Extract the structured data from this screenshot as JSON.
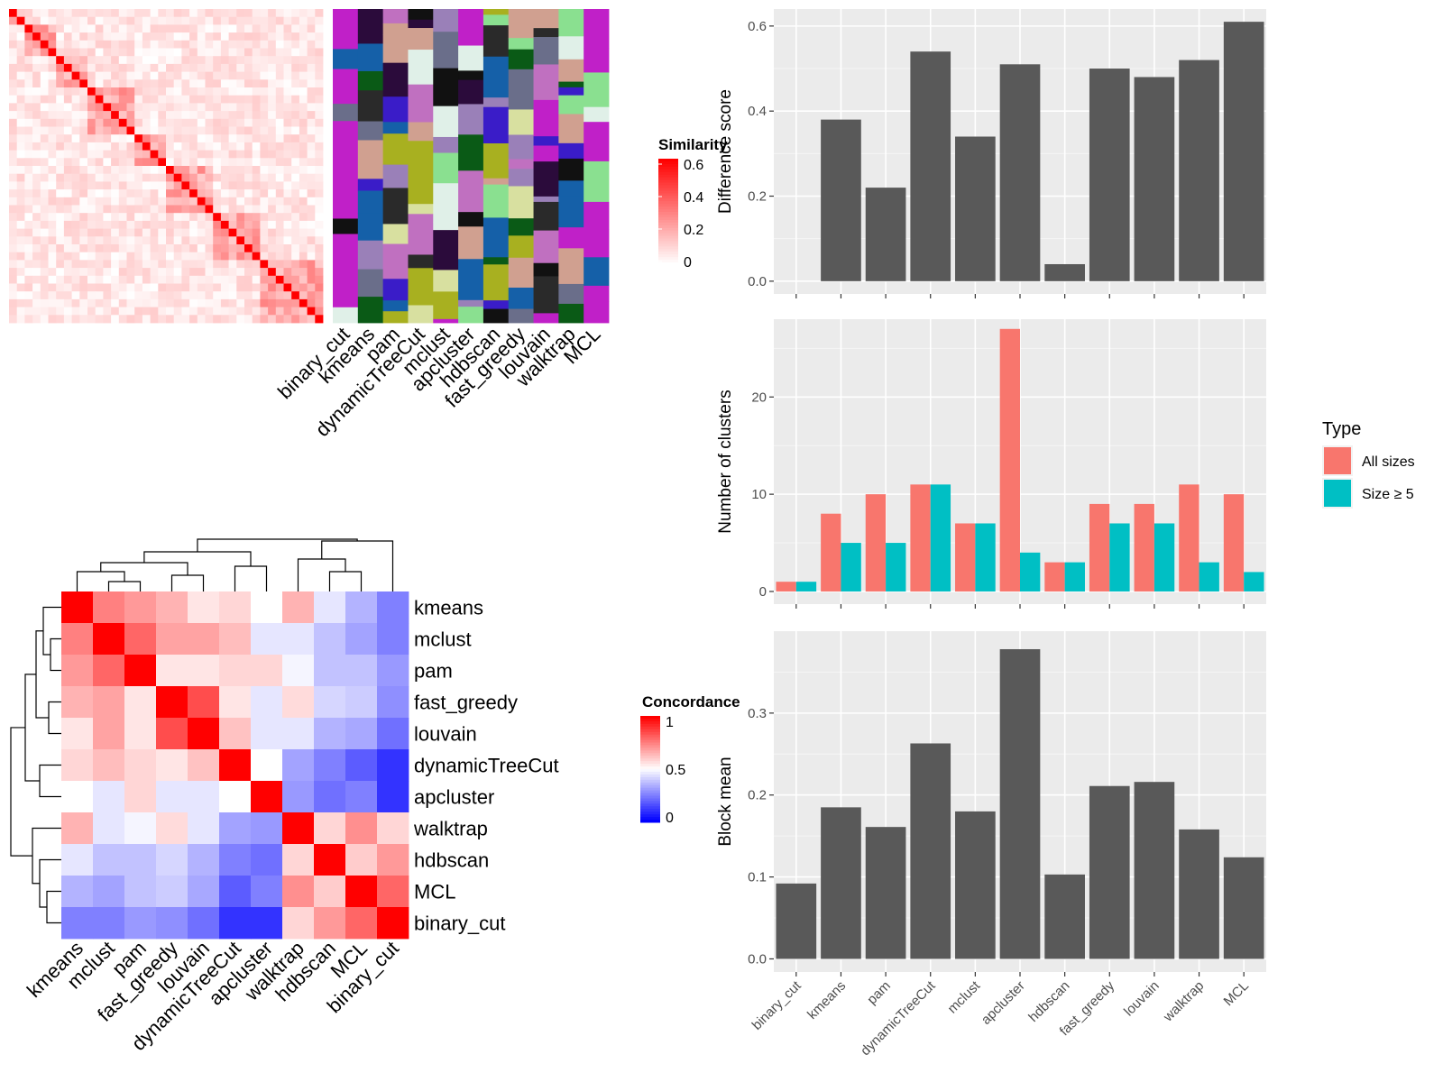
{
  "chart_data": [
    {
      "type": "heatmap",
      "panel": "similarity-heatmap",
      "legend_title": "Similarity",
      "legend_ticks": [
        "0.6",
        "0.4",
        "0.2",
        "0"
      ],
      "legend_range": [
        0,
        0.6
      ],
      "column_labels": [
        "binary_cut",
        "kmeans",
        "pam",
        "dynamicTreeCut",
        "mclust",
        "apcluster",
        "hdbscan",
        "fast_greedy",
        "louvain",
        "walktrap",
        "MCL"
      ],
      "n_items": 40
    },
    {
      "type": "heatmap",
      "panel": "concordance-heatmap",
      "legend_title": "Concordance",
      "legend_ticks": [
        "1",
        "0.5",
        "0"
      ],
      "legend_range": [
        0,
        1
      ],
      "rows": [
        "kmeans",
        "mclust",
        "pam",
        "fast_greedy",
        "louvain",
        "dynamicTreeCut",
        "apcluster",
        "walktrap",
        "hdbscan",
        "MCL",
        "binary_cut"
      ],
      "columns": [
        "kmeans",
        "mclust",
        "pam",
        "fast_greedy",
        "louvain",
        "dynamicTreeCut",
        "apcluster",
        "walktrap",
        "hdbscan",
        "MCL",
        "binary_cut"
      ],
      "values": [
        [
          1.0,
          0.75,
          0.7,
          0.65,
          0.55,
          0.58,
          0.5,
          0.65,
          0.45,
          0.35,
          0.25
        ],
        [
          0.75,
          1.0,
          0.8,
          0.68,
          0.68,
          0.63,
          0.45,
          0.45,
          0.38,
          0.32,
          0.25
        ],
        [
          0.7,
          0.8,
          1.0,
          0.55,
          0.55,
          0.58,
          0.58,
          0.48,
          0.38,
          0.38,
          0.3
        ],
        [
          0.65,
          0.68,
          0.55,
          1.0,
          0.85,
          0.55,
          0.45,
          0.57,
          0.42,
          0.4,
          0.28
        ],
        [
          0.55,
          0.68,
          0.55,
          0.85,
          1.0,
          0.62,
          0.45,
          0.45,
          0.35,
          0.33,
          0.22
        ],
        [
          0.58,
          0.63,
          0.58,
          0.55,
          0.62,
          1.0,
          0.5,
          0.32,
          0.25,
          0.18,
          0.1
        ],
        [
          0.5,
          0.45,
          0.58,
          0.45,
          0.45,
          0.5,
          1.0,
          0.3,
          0.22,
          0.25,
          0.1
        ],
        [
          0.65,
          0.45,
          0.48,
          0.57,
          0.45,
          0.32,
          0.3,
          1.0,
          0.58,
          0.72,
          0.58
        ],
        [
          0.45,
          0.38,
          0.38,
          0.42,
          0.35,
          0.25,
          0.22,
          0.58,
          1.0,
          0.6,
          0.7
        ],
        [
          0.35,
          0.32,
          0.38,
          0.4,
          0.33,
          0.18,
          0.25,
          0.72,
          0.6,
          1.0,
          0.8
        ],
        [
          0.25,
          0.25,
          0.3,
          0.28,
          0.22,
          0.1,
          0.1,
          0.58,
          0.7,
          0.8,
          1.0
        ]
      ]
    },
    {
      "type": "bar",
      "panel": "difference-score",
      "categories": [
        "binary_cut",
        "kmeans",
        "pam",
        "dynamicTreeCut",
        "mclust",
        "apcluster",
        "hdbscan",
        "fast_greedy",
        "louvain",
        "walktrap",
        "MCL"
      ],
      "values": [
        0.0,
        0.38,
        0.22,
        0.54,
        0.34,
        0.51,
        0.04,
        0.5,
        0.48,
        0.52,
        0.61
      ],
      "ylabel": "Difference score",
      "ylim": [
        -0.03,
        0.64
      ],
      "yticks": [
        0.0,
        0.2,
        0.4,
        0.6
      ],
      "ytick_labels": [
        "0.0",
        "0.2",
        "0.4",
        "0.6"
      ],
      "color": "#595959"
    },
    {
      "type": "bar",
      "panel": "number-of-clusters",
      "categories": [
        "binary_cut",
        "kmeans",
        "pam",
        "dynamicTreeCut",
        "mclust",
        "apcluster",
        "hdbscan",
        "fast_greedy",
        "louvain",
        "walktrap",
        "MCL"
      ],
      "series": [
        {
          "name": "All sizes",
          "values": [
            1,
            8,
            10,
            11,
            7,
            27,
            3,
            9,
            9,
            11,
            10
          ],
          "color": "#F8766D"
        },
        {
          "name": "Size ≥ 5",
          "values": [
            1,
            5,
            5,
            11,
            7,
            4,
            3,
            7,
            7,
            3,
            2
          ],
          "color": "#00BFC4"
        }
      ],
      "ylabel": "Number of clusters",
      "ylim": [
        -1.3,
        28
      ],
      "yticks": [
        0,
        10,
        20
      ],
      "ytick_labels": [
        "0",
        "10",
        "20"
      ],
      "legend_title": "Type",
      "legend_position": "right"
    },
    {
      "type": "bar",
      "panel": "block-mean",
      "categories": [
        "binary_cut",
        "kmeans",
        "pam",
        "dynamicTreeCut",
        "mclust",
        "apcluster",
        "hdbscan",
        "fast_greedy",
        "louvain",
        "walktrap",
        "MCL"
      ],
      "values": [
        0.092,
        0.185,
        0.161,
        0.263,
        0.18,
        0.378,
        0.103,
        0.211,
        0.216,
        0.158,
        0.124
      ],
      "ylabel": "Block mean",
      "ylim": [
        -0.016,
        0.4
      ],
      "yticks": [
        0.0,
        0.1,
        0.2,
        0.3
      ],
      "ytick_labels": [
        "0.0",
        "0.1",
        "0.2",
        "0.3"
      ],
      "color": "#595959"
    }
  ]
}
